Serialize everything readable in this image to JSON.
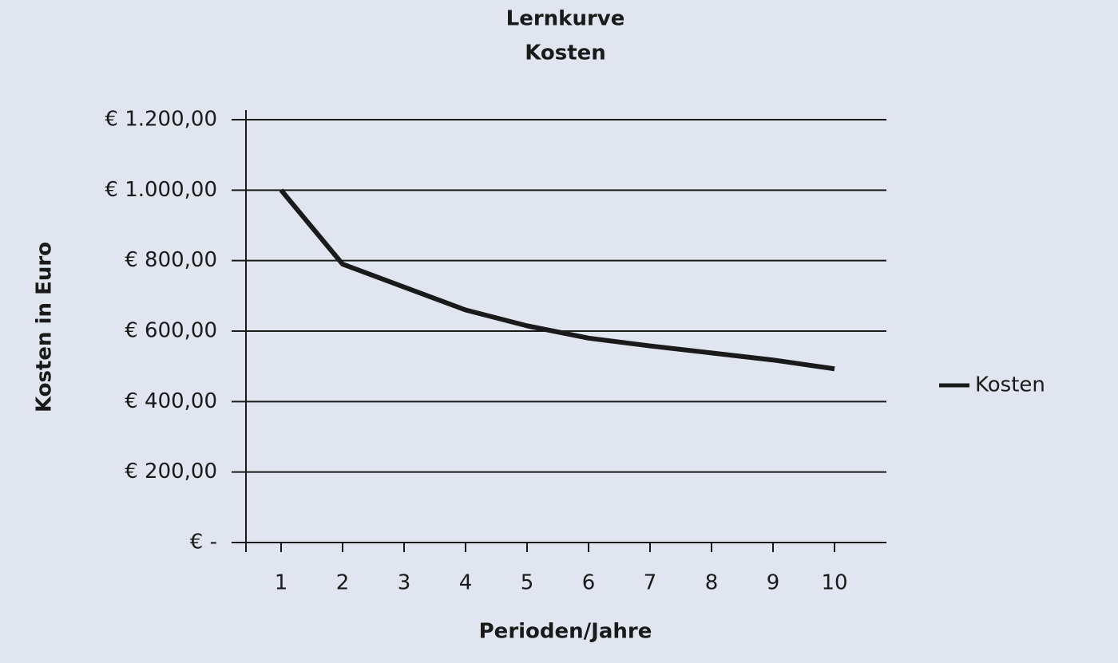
{
  "chart_data": {
    "type": "line",
    "title": "Lernkurve",
    "subtitle": "Kosten",
    "x_label": "Perioden/Jahre",
    "y_label": "Kosten in Euro",
    "categories": [
      "1",
      "2",
      "3",
      "4",
      "5",
      "6",
      "7",
      "8",
      "9",
      "10"
    ],
    "series": [
      {
        "name": "Kosten",
        "color": "#1a1a1a",
        "values": [
          1000,
          790,
          725,
          660,
          615,
          580,
          558,
          538,
          518,
          493
        ]
      }
    ],
    "ylim": [
      0,
      1200
    ],
    "yticks": [
      {
        "value": 0,
        "label": "€ -"
      },
      {
        "value": 200,
        "label": "€ 200,00"
      },
      {
        "value": 400,
        "label": "€ 400,00"
      },
      {
        "value": 600,
        "label": "€ 600,00"
      },
      {
        "value": 800,
        "label": "€ 800,00"
      },
      {
        "value": 1000,
        "label": "€ 1.000,00"
      },
      {
        "value": 1200,
        "label": "€ 1.200,00"
      }
    ],
    "grid": true,
    "legend": "right"
  }
}
